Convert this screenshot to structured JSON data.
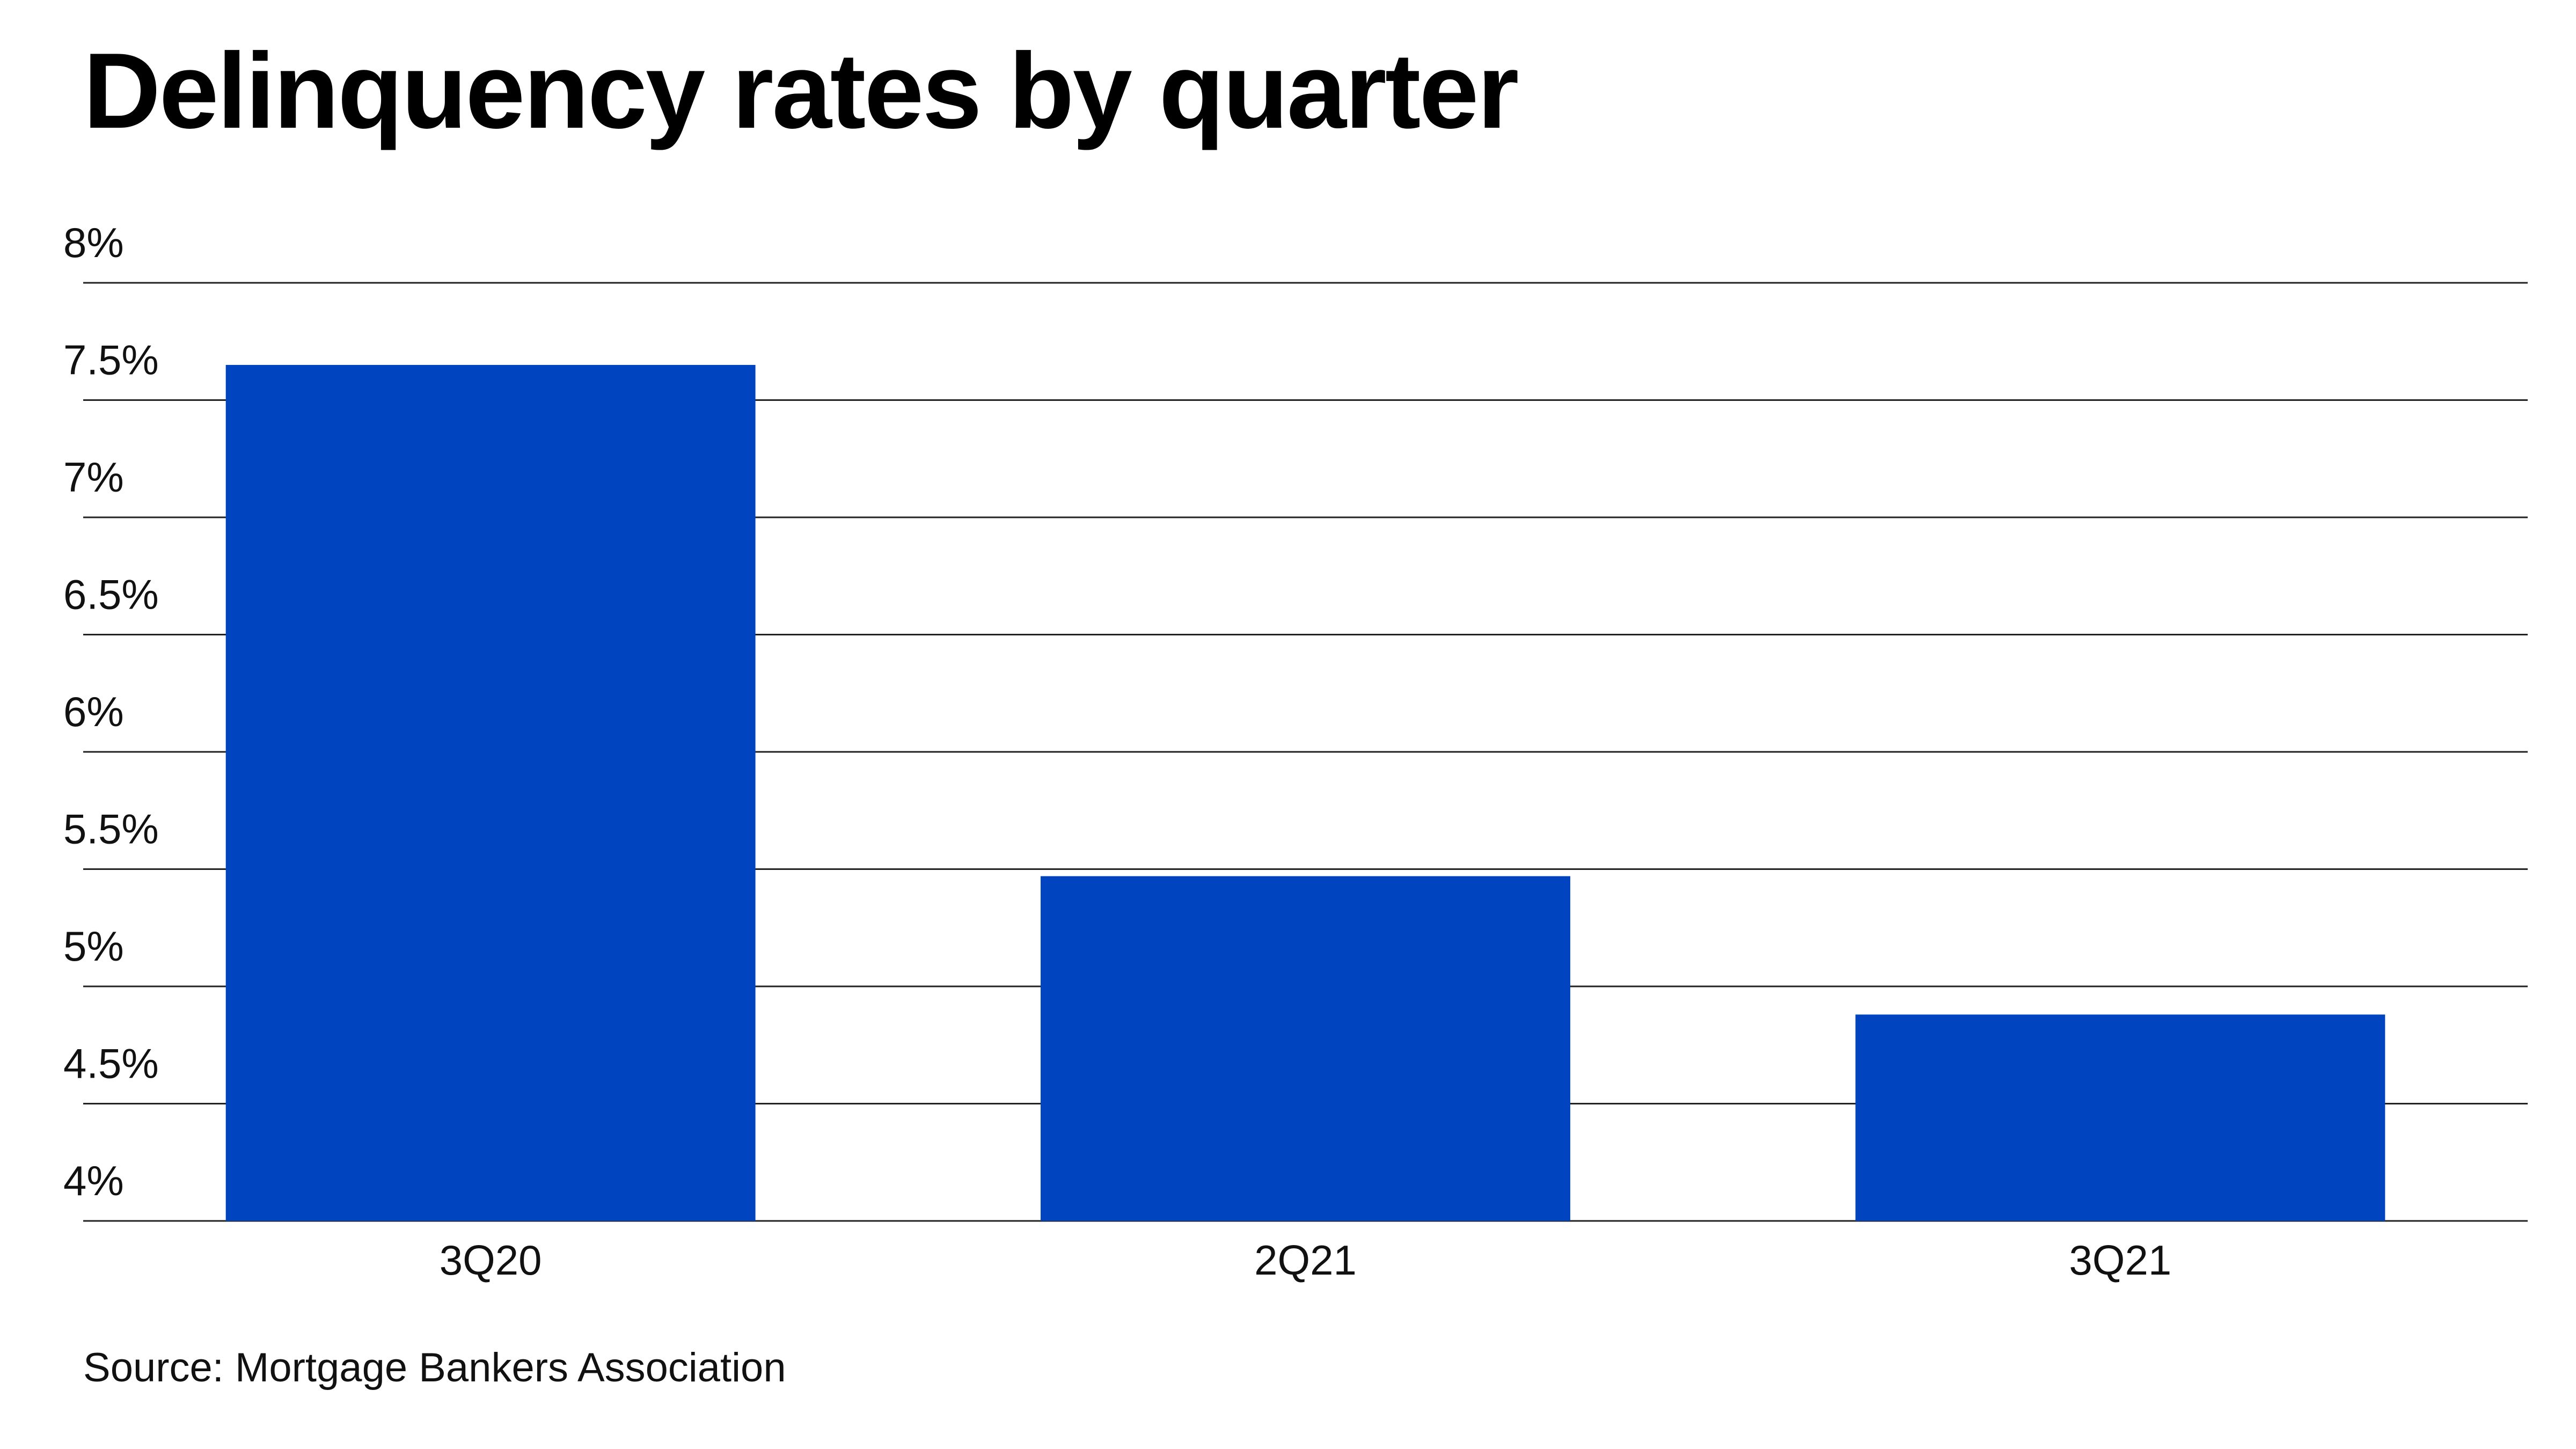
{
  "chart_data": {
    "type": "bar",
    "title": "Delinquency rates by quarter",
    "xlabel": "",
    "ylabel": "",
    "categories": [
      "3Q20",
      "2Q21",
      "3Q21"
    ],
    "values": [
      7.65,
      5.47,
      4.88
    ],
    "ylim": [
      4,
      8
    ],
    "y_ticks": [
      4,
      4.5,
      5,
      5.5,
      6,
      6.5,
      7,
      7.5,
      8
    ],
    "y_tick_labels": [
      "4%",
      "4.5%",
      "5%",
      "5.5%",
      "6%",
      "6.5%",
      "7%",
      "7.5%",
      "8%"
    ],
    "grid": true,
    "legend": "none",
    "bar_color": "#0044BF",
    "grid_color": "#222222"
  },
  "source": "Source: Mortgage Bankers Association"
}
